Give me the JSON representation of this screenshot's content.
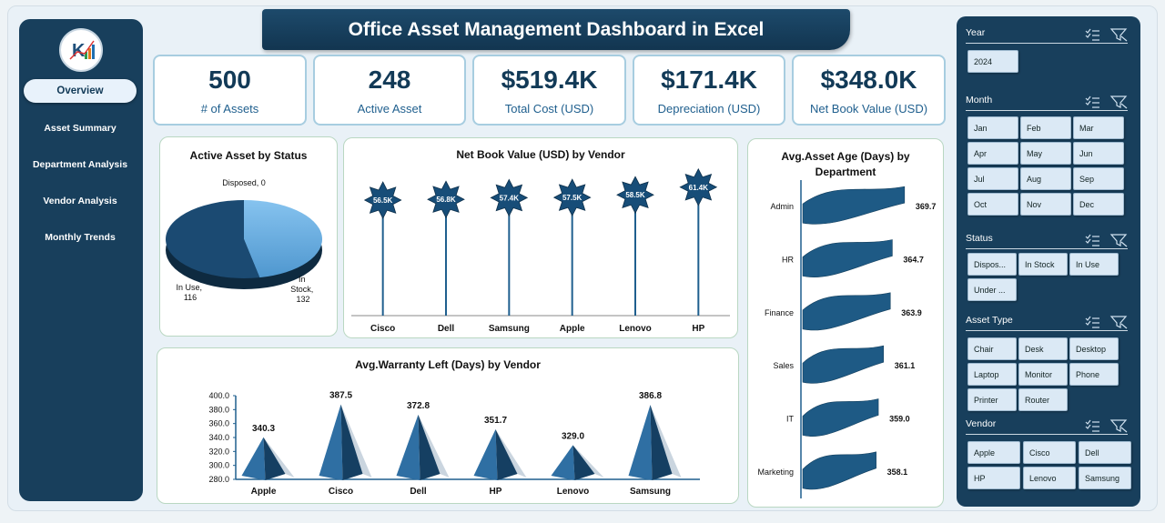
{
  "title": "Office Asset Management Dashboard in Excel",
  "nav": [
    "Overview",
    "Asset Summary",
    "Department Analysis",
    "Vendor Analysis",
    "Monthly Trends"
  ],
  "kpis": [
    {
      "value": "500",
      "label": "# of Assets"
    },
    {
      "value": "248",
      "label": "Active Asset"
    },
    {
      "value": "$519.4K",
      "label": "Total Cost (USD)"
    },
    {
      "value": "$171.4K",
      "label": "Depreciation (USD)"
    },
    {
      "value": "$348.0K",
      "label": "Net Book Value (USD)"
    }
  ],
  "colors": {
    "navy": "#183f5c",
    "dark_blue": "#1b4a72",
    "light_blue": "#6fb3e8",
    "accent": "#1f5f8e"
  },
  "chart_data": [
    {
      "type": "pie",
      "title": "Active Asset by Status",
      "slices": [
        {
          "label": "Disposed, 0",
          "value": 0
        },
        {
          "label_lines": [
            "In Use,",
            "116"
          ],
          "value": 116
        },
        {
          "label_lines": [
            "In",
            "Stock,",
            "132"
          ],
          "value": 132
        }
      ]
    },
    {
      "type": "line",
      "title": "Net Book Value (USD) by Vendor",
      "categories": [
        "Cisco",
        "Dell",
        "Samsung",
        "Apple",
        "Lenovo",
        "HP"
      ],
      "values": [
        56.5,
        56.8,
        57.4,
        57.5,
        58.5,
        61.4
      ],
      "data_labels": [
        "56.5K",
        "56.8K",
        "57.4K",
        "57.5K",
        "58.5K",
        "61.4K"
      ]
    },
    {
      "type": "bar",
      "title": "Avg.Warranty Left (Days) by Vendor",
      "categories": [
        "Apple",
        "Cisco",
        "Dell",
        "HP",
        "Lenovo",
        "Samsung"
      ],
      "values": [
        340.3,
        387.5,
        372.8,
        351.7,
        329.0,
        386.8
      ],
      "data_labels": [
        "340.3",
        "387.5",
        "372.8",
        "351.7",
        "329.0",
        "386.8"
      ],
      "ylim": [
        280,
        400
      ],
      "yticks": [
        "280.0",
        "300.0",
        "320.0",
        "340.0",
        "360.0",
        "380.0",
        "400.0"
      ]
    },
    {
      "type": "bar",
      "title_lines": [
        "Avg.Asset Age (Days) by",
        "Department"
      ],
      "categories": [
        "Admin",
        "HR",
        "Finance",
        "Sales",
        "IT",
        "Marketing"
      ],
      "values": [
        369.7,
        364.7,
        363.9,
        361.1,
        359.0,
        358.1
      ],
      "data_labels": [
        "369.7",
        "364.7",
        "363.9",
        "361.1",
        "359.0",
        "358.1"
      ]
    }
  ],
  "slicers": [
    {
      "label": "Year",
      "items": [
        "2024"
      ]
    },
    {
      "label": "Month",
      "items": [
        "Jan",
        "Feb",
        "Mar",
        "Apr",
        "May",
        "Jun",
        "Jul",
        "Aug",
        "Sep",
        "Oct",
        "Nov",
        "Dec"
      ]
    },
    {
      "label": "Status",
      "items": [
        "Dispos...",
        "In Stock",
        "In Use",
        "Under ..."
      ]
    },
    {
      "label": "Asset Type",
      "items": [
        "Chair",
        "Desk",
        "Desktop",
        "Laptop",
        "Monitor",
        "Phone",
        "Printer",
        "Router"
      ]
    },
    {
      "label": "Vendor",
      "items": [
        "Apple",
        "Cisco",
        "Dell",
        "HP",
        "Lenovo",
        "Samsung"
      ]
    }
  ]
}
